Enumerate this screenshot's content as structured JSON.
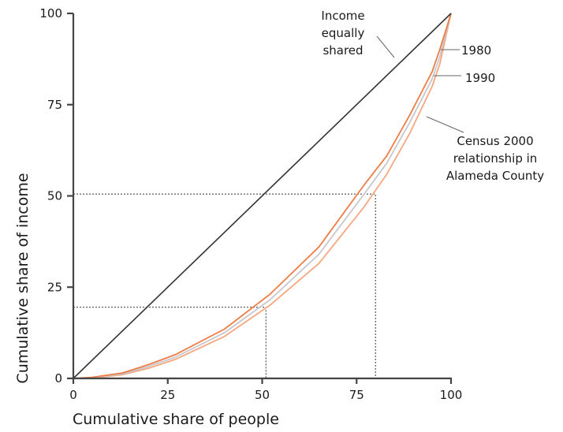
{
  "chart_data": {
    "type": "line",
    "title": "",
    "xlabel": "Cumulative share of people",
    "ylabel": "Cumulative share of income",
    "xlim": [
      0,
      100
    ],
    "ylim": [
      0,
      100
    ],
    "xticks": [
      "0",
      "25",
      "50",
      "75",
      "100"
    ],
    "yticks": [
      "0",
      "25",
      "50",
      "75",
      "100"
    ],
    "series": [
      {
        "name": "Income equally shared",
        "color": "#333333",
        "x": [
          0,
          100
        ],
        "y": [
          0,
          100
        ]
      },
      {
        "name": "1980",
        "color": "#ee7d45",
        "x": [
          0,
          5,
          13,
          20,
          27,
          40,
          52,
          65,
          77,
          83,
          89,
          95,
          97,
          100
        ],
        "y": [
          0,
          0.3,
          1.5,
          3.8,
          6.5,
          13.5,
          23,
          36,
          53,
          61,
          72,
          84,
          90,
          100
        ]
      },
      {
        "name": "1990",
        "color": "#c7c7cf",
        "x": [
          0,
          5,
          13,
          20,
          27,
          40,
          52,
          65,
          77,
          83,
          89,
          95,
          97,
          100
        ],
        "y": [
          0,
          0.2,
          1.2,
          3.3,
          5.8,
          12.5,
          21.5,
          34,
          50.5,
          59,
          70,
          82,
          88,
          100
        ]
      },
      {
        "name": "Census 2000 relationship in Alameda County",
        "color": "#f5a77f",
        "x": [
          0,
          5,
          13,
          20,
          27,
          40,
          52,
          65,
          77,
          83,
          89,
          95,
          97,
          100
        ],
        "y": [
          0,
          0.1,
          1,
          2.8,
          5.2,
          11.5,
          20,
          31.5,
          47,
          56,
          67,
          80,
          86,
          100
        ]
      }
    ],
    "reference_lines": [
      {
        "x": 51,
        "y": 19.5
      },
      {
        "x": 80,
        "y": 50.5
      }
    ],
    "annotations": {
      "equal": [
        "Income",
        "equally",
        "shared"
      ],
      "y1980": "1980",
      "y1990": "1990",
      "census": [
        "Census 2000",
        "relationship in",
        "Alameda County"
      ]
    }
  }
}
